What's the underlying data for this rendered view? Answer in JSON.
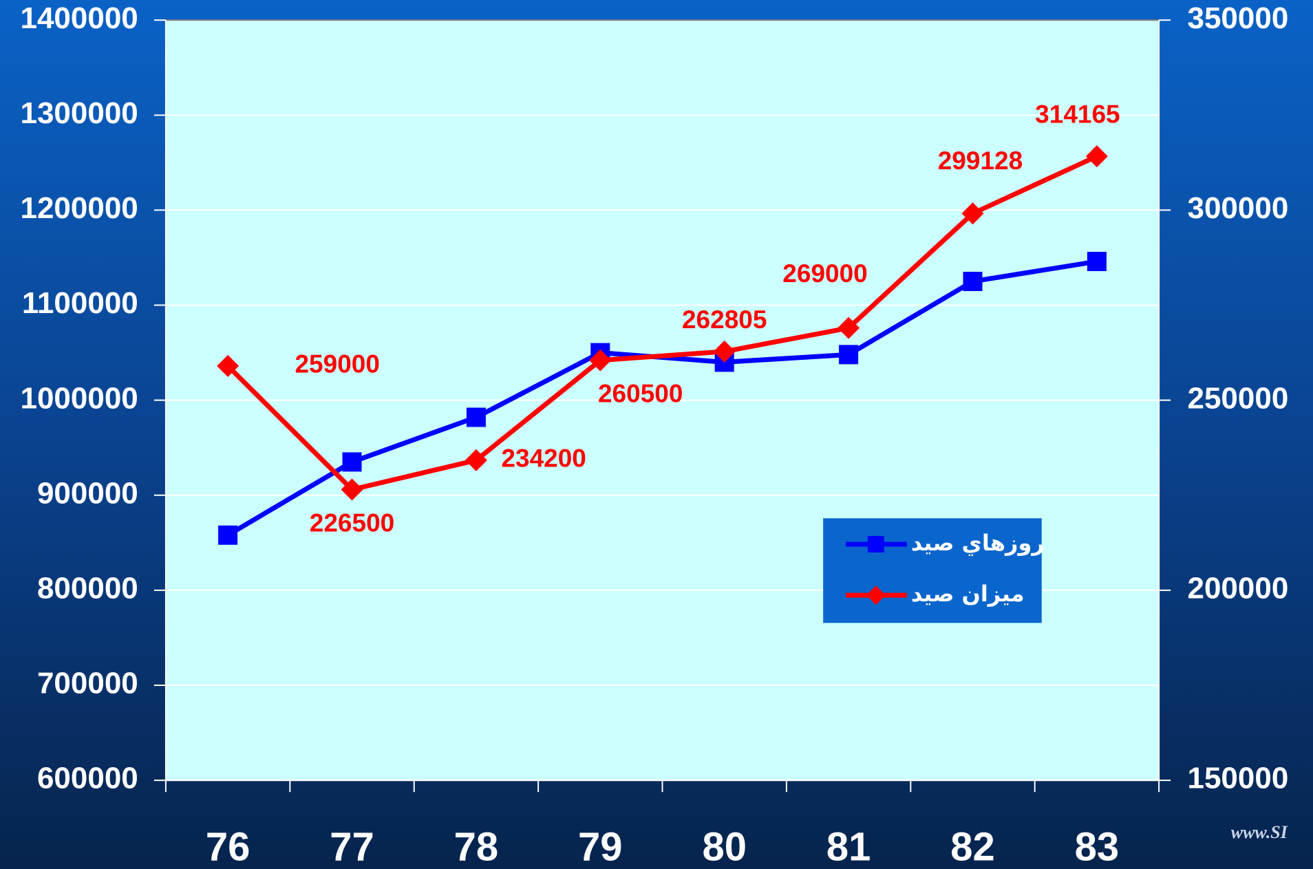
{
  "chart_data": {
    "type": "line",
    "categories": [
      "76",
      "77",
      "78",
      "79",
      "80",
      "81",
      "82",
      "83"
    ],
    "series": [
      {
        "name": "روزهاي صيد",
        "color": "#0000ff",
        "values": [
          858000,
          935000,
          982000,
          1050000,
          1040000,
          1048000,
          1125000,
          1146000
        ]
      },
      {
        "name": "ميزان صيد",
        "color": "#ff0000",
        "axis": "y2",
        "values": [
          259000,
          226500,
          234200,
          260500,
          262805,
          269000,
          299128,
          314165
        ]
      }
    ],
    "ylim": [
      600000,
      1400000
    ],
    "yticks": [
      600000,
      700000,
      800000,
      900000,
      1000000,
      1100000,
      1200000,
      1300000,
      1400000
    ],
    "y2lim": [
      150000,
      350000
    ],
    "y2ticks": [
      150000,
      200000,
      250000,
      300000,
      350000
    ],
    "grid": true,
    "legend": "right",
    "watermark": "www.SI"
  }
}
